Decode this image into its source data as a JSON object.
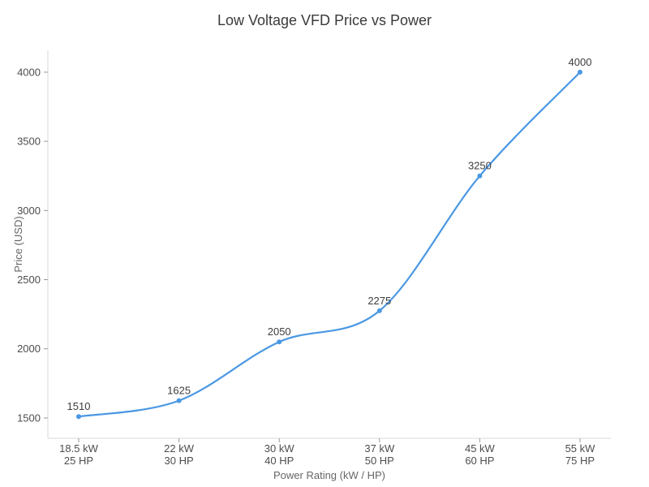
{
  "chart_data": {
    "type": "line",
    "title": "Low Voltage VFD Price vs Power",
    "xlabel": "Power Rating (kW / HP)",
    "ylabel": "Price (USD)",
    "categories": [
      {
        "kw": "18.5 kW",
        "hp": "25 HP"
      },
      {
        "kw": "22 kW",
        "hp": "30 HP"
      },
      {
        "kw": "30 kW",
        "hp": "40 HP"
      },
      {
        "kw": "37 kW",
        "hp": "50 HP"
      },
      {
        "kw": "45 kW",
        "hp": "60 HP"
      },
      {
        "kw": "55 kW",
        "hp": "75 HP"
      }
    ],
    "values": [
      1510,
      1625,
      2050,
      2275,
      3250,
      4000
    ],
    "point_labels": [
      "1510",
      "1625",
      "2050",
      "2275",
      "3250",
      "4000"
    ],
    "yticks": [
      1500,
      2000,
      2500,
      3000,
      3500,
      4000
    ],
    "ylim": [
      1353,
      4158
    ],
    "grid": false,
    "legend_position": "none",
    "smooth": true,
    "colors": {
      "line": "#4a98e4",
      "marker": "#4a98e4",
      "axis_line": "#d9d9d9",
      "tick_mark": "#999999",
      "tick_label": "#4d4d4d",
      "axis_title": "#666666",
      "title": "#3a3a3a",
      "point_label": "#3d3d3d",
      "background": "#ffffff"
    }
  }
}
